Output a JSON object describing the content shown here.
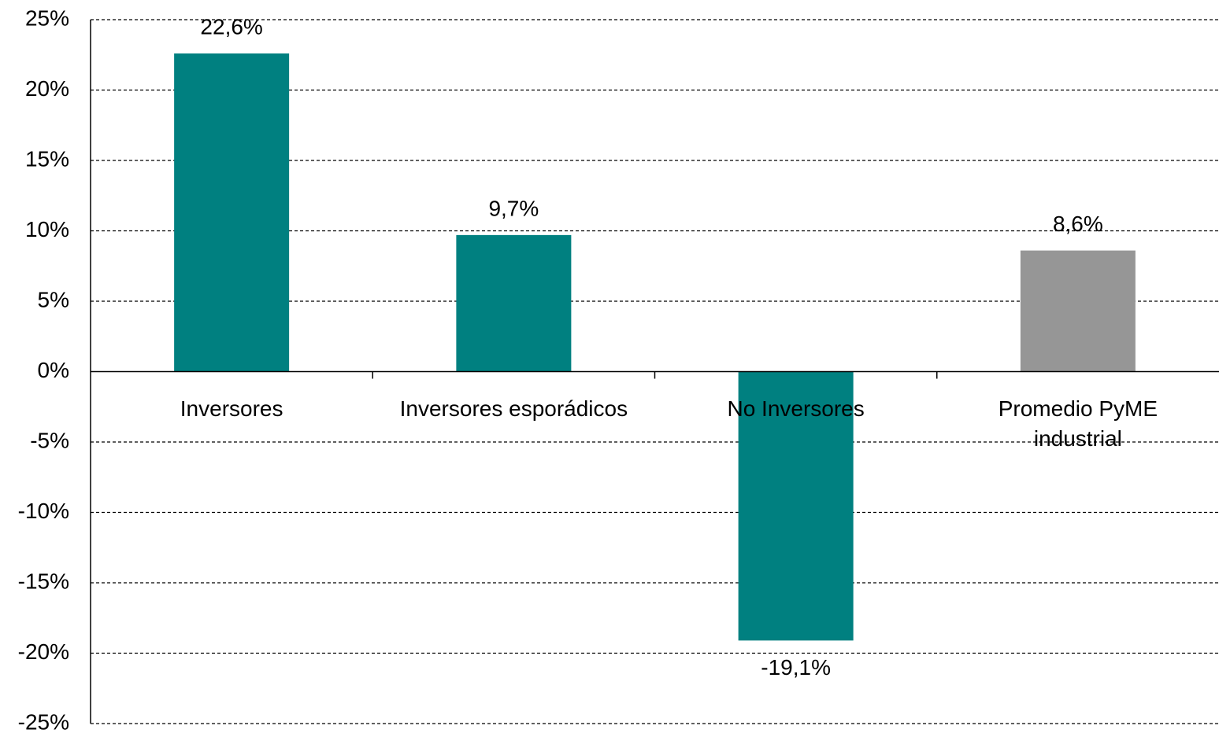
{
  "chart_data": {
    "type": "bar",
    "categories": [
      "Inversores",
      "Inversores esporádicos",
      "No Inversores",
      "Promedio PyME industrial"
    ],
    "values": [
      22.6,
      9.7,
      -19.1,
      8.6
    ],
    "value_labels": [
      "22,6%",
      "9,7%",
      "-19,1%",
      "8,6%"
    ],
    "colors": [
      "#008080",
      "#008080",
      "#008080",
      "#969696"
    ],
    "ylim": [
      -25,
      25
    ],
    "yticks": [
      {
        "value": 25,
        "label": "25%"
      },
      {
        "value": 20,
        "label": "20%"
      },
      {
        "value": 15,
        "label": "15%"
      },
      {
        "value": 10,
        "label": "10%"
      },
      {
        "value": 5,
        "label": "5%"
      },
      {
        "value": 0,
        "label": "0%"
      },
      {
        "value": -5,
        "label": "-5%"
      },
      {
        "value": -10,
        "label": "-10%"
      },
      {
        "value": -15,
        "label": "-15%"
      },
      {
        "value": -20,
        "label": "-20%"
      },
      {
        "value": -25,
        "label": "-25%"
      }
    ],
    "grid": true
  }
}
